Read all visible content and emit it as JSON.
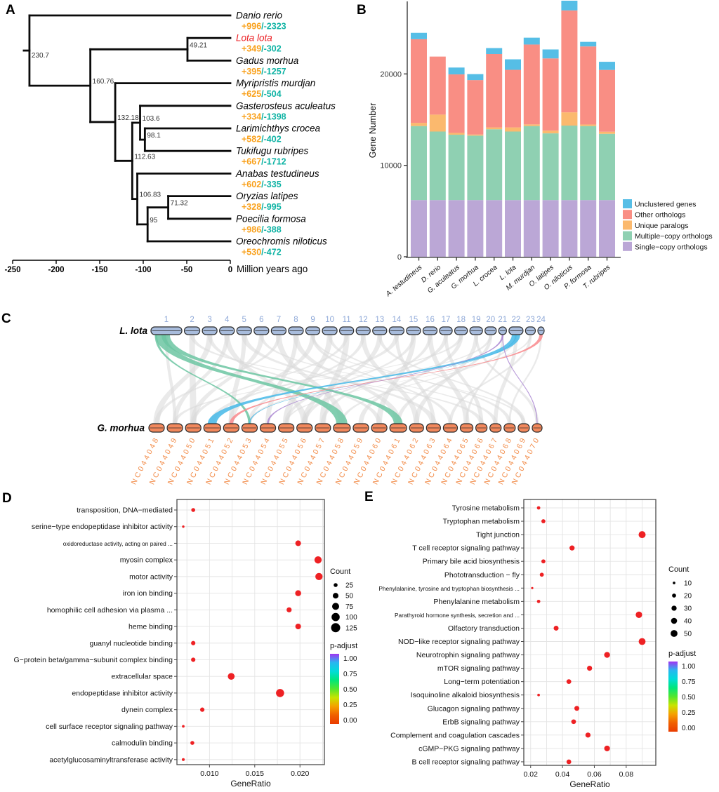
{
  "panels": {
    "a": "A",
    "b": "B",
    "c": "C",
    "d": "D",
    "e": "E"
  },
  "colors": {
    "gain_text": "#F9A11C",
    "loss_text": "#0FB3A4",
    "highlight_species": "#EC2125",
    "branch": "#0a0a0a",
    "bar_unclustered": "#56BEE6",
    "bar_other": "#F98E84",
    "bar_unique": "#FBB96E",
    "bar_multiple": "#8FD0B2",
    "bar_single": "#BBA7D6",
    "dot_red": "#EE2124",
    "lota_chrom": "#A8BCDC",
    "lota_label": "#8FA9D8",
    "morhua_chrom": "#F2885C",
    "morhua_label": "#F28C49",
    "ribbon_gray": "#D8D8D8",
    "ribbon_green": "#6CC6A2",
    "ribbon_blue": "#45B8E8",
    "ribbon_red": "#F9888C",
    "ribbon_purple": "#A985D1",
    "padjust_gradient": [
      "#A133F2",
      "#28B7F0",
      "#00DCD8",
      "#00E67A",
      "#52E62E",
      "#C8E400",
      "#F5A000",
      "#F06000",
      "#EA3C00"
    ]
  },
  "chart_data": [
    {
      "id": "phylogeny",
      "type": "tree",
      "axis": {
        "ticks": [
          "-250",
          "-200",
          "-150",
          "-100",
          "-50",
          "0"
        ],
        "label": "Million years ago"
      },
      "species": [
        {
          "name": "Danio rerio",
          "gain": "+996",
          "loss": "-2323",
          "highlight": false
        },
        {
          "name": "Lota lota",
          "gain": "+349",
          "loss": "-302",
          "highlight": true
        },
        {
          "name": "Gadus morhua",
          "gain": "+395",
          "loss": "-1257",
          "highlight": false
        },
        {
          "name": "Myripristis murdjan",
          "gain": "+625",
          "loss": "-504",
          "highlight": false
        },
        {
          "name": "Gasterosteus aculeatus",
          "gain": "+334",
          "loss": "-1398",
          "highlight": false
        },
        {
          "name": "Larimichthys crocea",
          "gain": "+582",
          "loss": "-402",
          "highlight": false
        },
        {
          "name": "Tukifugu rubripes",
          "gain": "+667",
          "loss": "-1712",
          "highlight": false
        },
        {
          "name": "Anabas testudineus",
          "gain": "+602",
          "loss": "-335",
          "highlight": false
        },
        {
          "name": "Oryzias latipes",
          "gain": "+328",
          "loss": "-995",
          "highlight": false
        },
        {
          "name": "Poecilia formosa",
          "gain": "+986",
          "loss": "-388",
          "highlight": false
        },
        {
          "name": "Oreochromis niloticus",
          "gain": "+530",
          "loss": "-472",
          "highlight": false
        }
      ],
      "root": {
        "age": 230.7,
        "label": "230.7",
        "children": [
          {
            "tip": 0
          },
          {
            "age": 160.76,
            "label": "160.76",
            "children": [
              {
                "age": 49.21,
                "label": "49.21",
                "children": [
                  {
                    "tip": 1
                  },
                  {
                    "tip": 2
                  }
                ]
              },
              {
                "age": 132.18,
                "label": "132.18",
                "children": [
                  {
                    "tip": 3
                  },
                  {
                    "age": 112.63,
                    "label": "112.63",
                    "children": [
                      {
                        "age": 103.6,
                        "label": "103.6",
                        "children": [
                          {
                            "tip": 4
                          },
                          {
                            "age": 98.1,
                            "label": "98.1",
                            "children": [
                              {
                                "tip": 5
                              },
                              {
                                "tip": 6
                              }
                            ]
                          }
                        ]
                      },
                      {
                        "age": 106.83,
                        "label": "106.83",
                        "children": [
                          {
                            "tip": 7
                          },
                          {
                            "age": 95,
                            "label": "95",
                            "children": [
                              {
                                "age": 71.32,
                                "label": "71.32",
                                "children": [
                                  {
                                    "tip": 8
                                  },
                                  {
                                    "tip": 9
                                  }
                                ]
                              },
                              {
                                "tip": 10
                              }
                            ]
                          }
                        ]
                      }
                    ]
                  }
                ]
              }
            ]
          }
        ]
      }
    },
    {
      "id": "gene_numbers",
      "type": "bar",
      "stacked": true,
      "ylabel": "Gene Number",
      "yticks": [
        0,
        10000,
        20000
      ],
      "ylim": [
        0,
        28200
      ],
      "categories": [
        "A. testudineus",
        "D. rerio",
        "G. aculeatus",
        "G. morhua",
        "L. crocea",
        "L. lota",
        "M. murdjan",
        "O. latipes",
        "O. niloticus",
        "P. formosa",
        "T. rubripes"
      ],
      "series": [
        {
          "name": "Single−copy orthologs",
          "color_key": "bar_single",
          "values": [
            6200,
            6200,
            6200,
            6200,
            6200,
            6200,
            6200,
            6200,
            6200,
            6200,
            6200
          ]
        },
        {
          "name": "Multiple−copy orthologs",
          "color_key": "bar_multiple",
          "values": [
            8100,
            7500,
            7150,
            7050,
            7750,
            7500,
            8100,
            7300,
            8150,
            8100,
            7250
          ]
        },
        {
          "name": "Unique paralogs",
          "color_key": "bar_unique",
          "values": [
            350,
            1850,
            200,
            120,
            200,
            450,
            180,
            300,
            1450,
            170,
            230
          ]
        },
        {
          "name": "Other orthologs",
          "color_key": "bar_other",
          "values": [
            9150,
            6350,
            6400,
            5960,
            8030,
            6300,
            8740,
            7900,
            11150,
            8540,
            6760
          ]
        },
        {
          "name": "Unclustered genes",
          "color_key": "bar_unclustered",
          "values": [
            700,
            0,
            750,
            650,
            650,
            1150,
            750,
            980,
            1100,
            500,
            890
          ]
        }
      ]
    },
    {
      "id": "synteny",
      "type": "synteny",
      "top": {
        "label": "L. lota",
        "chromosomes": [
          "1",
          "2",
          "3",
          "4",
          "5",
          "6",
          "7",
          "8",
          "9",
          "10",
          "11",
          "12",
          "13",
          "14",
          "15",
          "16",
          "17",
          "18",
          "19",
          "20",
          "21",
          "22",
          "23",
          "24"
        ],
        "widths": [
          44,
          22,
          21,
          21,
          21,
          21,
          21,
          21,
          20,
          21,
          20,
          20,
          20,
          21,
          20,
          20,
          18,
          18,
          18,
          16,
          11,
          20,
          14,
          9
        ]
      },
      "bottom": {
        "label": "G. morhua",
        "chromosomes": [
          "NC044048",
          "NC044049",
          "NC044050",
          "NC044051",
          "NC044052",
          "NC044053",
          "NC044054",
          "NC044055",
          "NC044056",
          "NC044057",
          "NC044058",
          "NC044059",
          "NC044060",
          "NC044061",
          "NC044062",
          "NC044063",
          "NC044064",
          "NC044065",
          "NC044066",
          "NC044067",
          "NC044068",
          "NC044069",
          "NC044070"
        ],
        "widths": [
          22,
          22,
          22,
          24,
          22,
          22,
          22,
          22,
          22,
          22,
          24,
          22,
          22,
          24,
          20,
          20,
          20,
          18,
          16,
          16,
          16,
          16,
          14
        ]
      },
      "gray_links": [
        [
          "1",
          "NC044049",
          4
        ],
        [
          "2",
          "NC044050",
          8
        ],
        [
          "2",
          "NC044066",
          6
        ],
        [
          "3",
          "NC044048",
          8
        ],
        [
          "3",
          "NC044060",
          6
        ],
        [
          "4",
          "NC044056",
          8
        ],
        [
          "4",
          "NC044049",
          6
        ],
        [
          "5",
          "NC044063",
          8
        ],
        [
          "5",
          "NC044052",
          6
        ],
        [
          "6",
          "NC044050",
          7
        ],
        [
          "6",
          "NC044067",
          5
        ],
        [
          "7",
          "NC044058",
          8
        ],
        [
          "7",
          "NC044048",
          5
        ],
        [
          "8",
          "NC044061",
          8
        ],
        [
          "8",
          "NC044054",
          6
        ],
        [
          "9",
          "NC044052",
          7
        ],
        [
          "9",
          "NC044064",
          5
        ],
        [
          "10",
          "NC044055",
          8
        ],
        [
          "10",
          "NC044068",
          5
        ],
        [
          "11",
          "NC044057",
          8
        ],
        [
          "11",
          "NC044050",
          5
        ],
        [
          "12",
          "NC044062",
          7
        ],
        [
          "12",
          "NC044053",
          5
        ],
        [
          "13",
          "NC044056",
          7
        ],
        [
          "13",
          "NC044069",
          5
        ],
        [
          "14",
          "NC044051",
          7
        ],
        [
          "14",
          "NC044063",
          5
        ],
        [
          "15",
          "NC044060",
          7
        ],
        [
          "15",
          "NC044055",
          5
        ],
        [
          "16",
          "NC044065",
          7
        ],
        [
          "16",
          "NC044057",
          5
        ],
        [
          "17",
          "NC044056",
          6
        ],
        [
          "17",
          "NC044066",
          5
        ],
        [
          "18",
          "NC044059",
          6
        ],
        [
          "18",
          "NC044049",
          5
        ],
        [
          "19",
          "NC044062",
          6
        ],
        [
          "19",
          "NC044070",
          4
        ],
        [
          "20",
          "NC044061",
          5
        ],
        [
          "20",
          "NC044053",
          4
        ],
        [
          "21",
          "NC044065",
          3
        ],
        [
          "22",
          "NC044067",
          5
        ],
        [
          "22",
          "NC044058",
          4
        ],
        [
          "23",
          "NC044064",
          4
        ],
        [
          "23",
          "NC044055",
          3
        ],
        [
          "24",
          "NC044068",
          2.5
        ],
        [
          "9",
          "NC044069",
          4
        ]
      ],
      "colored_links": [
        [
          "1",
          "NC044053",
          "ribbon_green",
          3.5
        ],
        [
          "1",
          "NC044058",
          "ribbon_green",
          15
        ],
        [
          "1",
          "NC044061",
          "ribbon_green",
          12
        ],
        [
          "22",
          "NC044051",
          "ribbon_blue",
          12
        ],
        [
          "22",
          "NC044053",
          "ribbon_blue",
          1.5
        ],
        [
          "24",
          "NC044052",
          "ribbon_red",
          5
        ],
        [
          "21",
          "NC044054",
          "ribbon_purple",
          2.5
        ],
        [
          "21",
          "NC044070",
          "ribbon_purple",
          1.2
        ]
      ]
    },
    {
      "id": "go_enrichment",
      "type": "scatter",
      "xlabel": "GeneRatio",
      "xticks": [
        "0.010",
        "0.015",
        "0.020"
      ],
      "xtick_values": [
        0.01,
        0.015,
        0.02
      ],
      "minor_ticks": [
        0.0075,
        0.0125,
        0.0175,
        0.0225
      ],
      "xlim": [
        0.0064,
        0.0227
      ],
      "categories": [
        "transposition, DNA−mediated",
        "serine−type endopeptidase inhibitor activity",
        "oxidoreductase activity, acting on paired ...",
        "myosin complex",
        "motor activity",
        "iron ion binding",
        "homophilic cell adhesion via plasma ...",
        "heme binding",
        "guanyl nucleotide binding",
        "G−protein beta/gamma−subunit complex binding",
        "extracellular space",
        "endopeptidase inhibitor activity",
        "dynein complex",
        "cell surface receptor signaling pathway",
        "calmodulin binding",
        "acetylglucosaminyltransferase activity"
      ],
      "gene_ratio": [
        0.0082,
        0.0071,
        0.0198,
        0.022,
        0.0221,
        0.0198,
        0.0188,
        0.0198,
        0.0082,
        0.0082,
        0.0124,
        0.0178,
        0.0092,
        0.0071,
        0.0081,
        0.0071
      ],
      "count": [
        25,
        10,
        50,
        80,
        80,
        55,
        40,
        50,
        30,
        30,
        70,
        100,
        30,
        12,
        25,
        14
      ],
      "p_adjust": [
        0.001,
        0.001,
        0.001,
        0.001,
        0.001,
        0.001,
        0.001,
        0.001,
        0.001,
        0.001,
        0.001,
        0.001,
        0.001,
        0.001,
        0.001,
        0.001
      ],
      "legend": {
        "count_title": "Count",
        "count_values": [
          25,
          50,
          75,
          100,
          125
        ],
        "padjust_title": "p-adjust",
        "padjust_ticks": [
          "1.00",
          "0.75",
          "0.50",
          "0.25",
          "0.00"
        ]
      }
    },
    {
      "id": "kegg_enrichment",
      "type": "scatter",
      "xlabel": "GeneRatio",
      "xticks": [
        "0.02",
        "0.04",
        "0.06",
        "0.08"
      ],
      "xtick_values": [
        0.02,
        0.04,
        0.06,
        0.08
      ],
      "minor_ticks": [
        0.03,
        0.05,
        0.07,
        0.09
      ],
      "xlim": [
        0.0157,
        0.0986
      ],
      "categories": [
        "Tyrosine metabolism",
        "Tryptophan metabolism",
        "Tight junction",
        "T cell receptor signaling pathway",
        "Primary bile acid biosynthesis",
        "Phototransduction − fly",
        "Phenylalanine, tyrosine and tryptophan biosynthesis ...",
        "Phenylalanine metabolism",
        "Parathyroid hormone synthesis, secretion and ...",
        "Olfactory transduction",
        "NOD−like receptor signaling pathway",
        "Neurotrophin signaling pathway",
        "mTOR signaling pathway",
        "Long−term potentiation",
        "Isoquinoline alkaloid biosynthesis",
        "Glucagon signaling pathway",
        "ErbB signaling pathway",
        "Complement and coagulation cascades",
        "cGMP−PKG signaling pathway",
        "B cell receptor signaling pathway"
      ],
      "gene_ratio": [
        0.025,
        0.028,
        0.09,
        0.046,
        0.028,
        0.027,
        0.021,
        0.025,
        0.088,
        0.036,
        0.09,
        0.068,
        0.057,
        0.044,
        0.025,
        0.049,
        0.047,
        0.056,
        0.068,
        0.044
      ],
      "count": [
        15,
        20,
        52,
        30,
        20,
        20,
        8,
        15,
        45,
        28,
        50,
        38,
        30,
        26,
        10,
        28,
        26,
        30,
        36,
        26
      ],
      "p_adjust": [
        0.001,
        0.001,
        0.001,
        0.001,
        0.001,
        0.001,
        0.001,
        0.001,
        0.001,
        0.001,
        0.001,
        0.001,
        0.001,
        0.001,
        0.001,
        0.001,
        0.001,
        0.001,
        0.001,
        0.001
      ],
      "legend": {
        "count_title": "Count",
        "count_values": [
          10,
          20,
          30,
          40,
          50
        ],
        "padjust_title": "p-adjust",
        "padjust_ticks": [
          "1.00",
          "0.75",
          "0.50",
          "0.25",
          "0.00"
        ]
      }
    }
  ]
}
